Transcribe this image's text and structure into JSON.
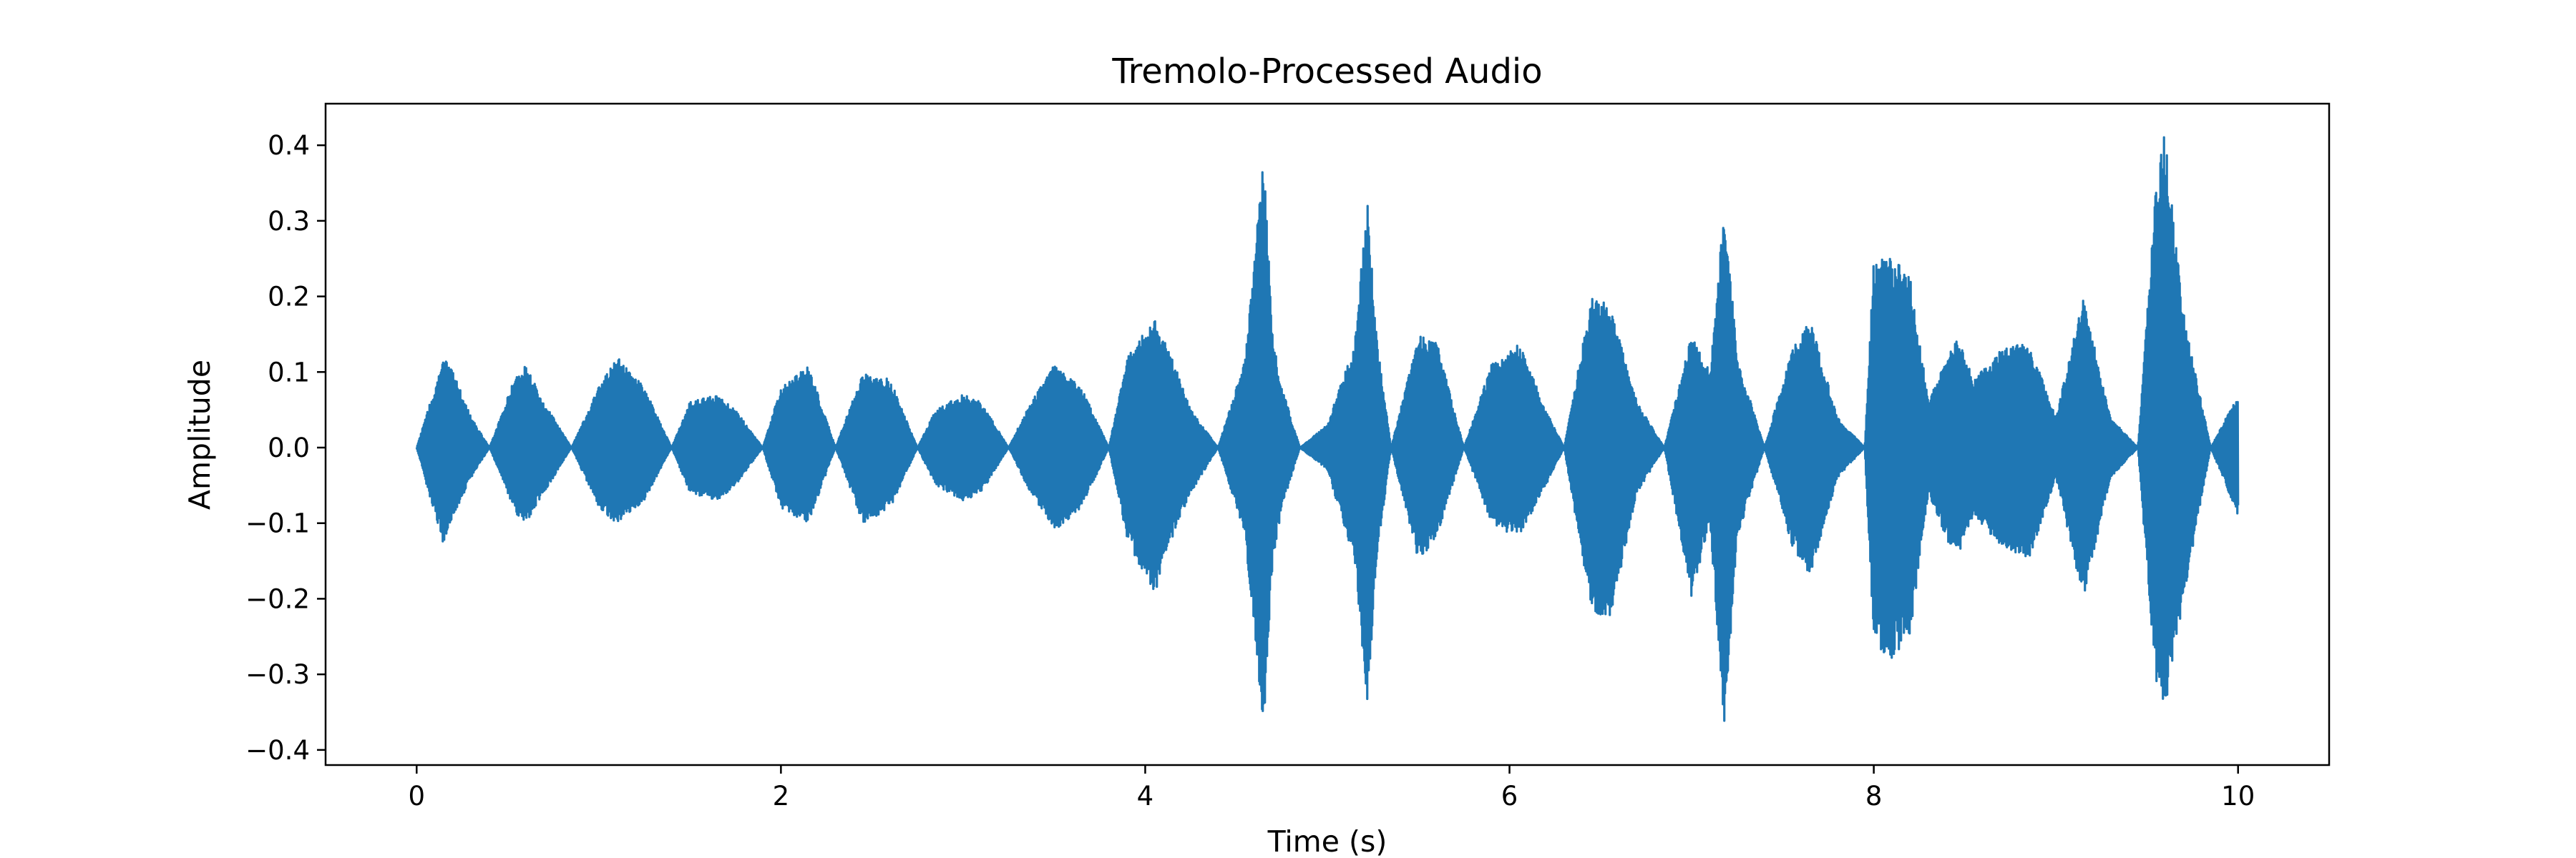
{
  "chart_data": {
    "type": "line",
    "title": "Tremolo-Processed Audio",
    "xlabel": "Time (s)",
    "ylabel": "Amplitude",
    "xlim": [
      -0.5,
      10.5
    ],
    "ylim": [
      -0.42,
      0.455
    ],
    "x_ticks": [
      0,
      2,
      4,
      6,
      8,
      10
    ],
    "x_tick_labels": [
      "0",
      "2",
      "4",
      "6",
      "8",
      "10"
    ],
    "y_ticks": [
      0.4,
      0.3,
      0.2,
      0.1,
      0.0,
      -0.1,
      -0.2,
      -0.3,
      -0.4
    ],
    "y_tick_labels": [
      "0.4",
      "0.3",
      "0.2",
      "0.1",
      "0.0",
      "−0.1",
      "−0.2",
      "−0.3",
      "−0.4"
    ],
    "grid": false,
    "legend": "none",
    "series_color": "#1f77b4",
    "series": [
      {
        "description": "waveform amplitude envelope (sampled peaks)",
        "time": [
          0.0,
          0.1,
          0.15,
          0.2,
          0.3,
          0.4,
          0.55,
          0.6,
          0.7,
          0.85,
          1.0,
          1.1,
          1.25,
          1.4,
          1.5,
          1.65,
          1.75,
          1.9,
          2.0,
          2.15,
          2.3,
          2.45,
          2.6,
          2.75,
          2.85,
          3.0,
          3.1,
          3.25,
          3.35,
          3.5,
          3.65,
          3.8,
          3.9,
          4.05,
          4.1,
          4.25,
          4.4,
          4.55,
          4.65,
          4.7,
          4.75,
          4.85,
          5.0,
          5.15,
          5.22,
          5.27,
          5.35,
          5.5,
          5.6,
          5.75,
          5.9,
          6.05,
          6.2,
          6.3,
          6.45,
          6.55,
          6.7,
          6.85,
          7.0,
          7.1,
          7.18,
          7.25,
          7.4,
          7.55,
          7.65,
          7.8,
          7.95,
          8.0,
          8.1,
          8.2,
          8.3,
          8.45,
          8.55,
          8.7,
          8.85,
          9.0,
          9.15,
          9.3,
          9.45,
          9.55,
          9.6,
          9.7,
          9.85,
          10.0
        ],
        "amplitude_upper": [
          0.0,
          0.08,
          0.12,
          0.1,
          0.04,
          0.0,
          0.1,
          0.11,
          0.06,
          0.0,
          0.08,
          0.12,
          0.08,
          0.0,
          0.06,
          0.07,
          0.05,
          0.0,
          0.08,
          0.11,
          0.0,
          0.1,
          0.09,
          0.0,
          0.05,
          0.07,
          0.06,
          0.0,
          0.05,
          0.11,
          0.08,
          0.0,
          0.12,
          0.17,
          0.15,
          0.05,
          0.0,
          0.12,
          0.39,
          0.15,
          0.08,
          0.0,
          0.03,
          0.14,
          0.33,
          0.15,
          0.0,
          0.15,
          0.14,
          0.0,
          0.11,
          0.14,
          0.05,
          0.0,
          0.2,
          0.19,
          0.06,
          0.0,
          0.15,
          0.1,
          0.32,
          0.12,
          0.0,
          0.13,
          0.17,
          0.04,
          0.0,
          0.25,
          0.25,
          0.23,
          0.06,
          0.15,
          0.09,
          0.13,
          0.14,
          0.04,
          0.2,
          0.04,
          0.0,
          0.35,
          0.42,
          0.18,
          0.0,
          0.07
        ],
        "amplitude_lower": [
          0.0,
          -0.09,
          -0.13,
          -0.09,
          -0.04,
          0.0,
          -0.09,
          -0.1,
          -0.06,
          0.0,
          -0.08,
          -0.1,
          -0.07,
          0.0,
          -0.06,
          -0.07,
          -0.05,
          0.0,
          -0.08,
          -0.1,
          0.0,
          -0.1,
          -0.08,
          0.0,
          -0.05,
          -0.07,
          -0.06,
          0.0,
          -0.05,
          -0.11,
          -0.08,
          0.0,
          -0.12,
          -0.2,
          -0.15,
          -0.06,
          0.0,
          -0.12,
          -0.38,
          -0.15,
          -0.08,
          0.0,
          -0.03,
          -0.15,
          -0.34,
          -0.15,
          0.0,
          -0.15,
          -0.12,
          0.0,
          -0.1,
          -0.12,
          -0.05,
          0.0,
          -0.22,
          -0.23,
          -0.06,
          0.0,
          -0.2,
          -0.1,
          -0.37,
          -0.12,
          0.0,
          -0.13,
          -0.17,
          -0.04,
          0.0,
          -0.26,
          -0.28,
          -0.25,
          -0.06,
          -0.15,
          -0.09,
          -0.13,
          -0.15,
          -0.04,
          -0.2,
          -0.04,
          0.0,
          -0.32,
          -0.35,
          -0.2,
          0.0,
          -0.09
        ]
      }
    ]
  }
}
